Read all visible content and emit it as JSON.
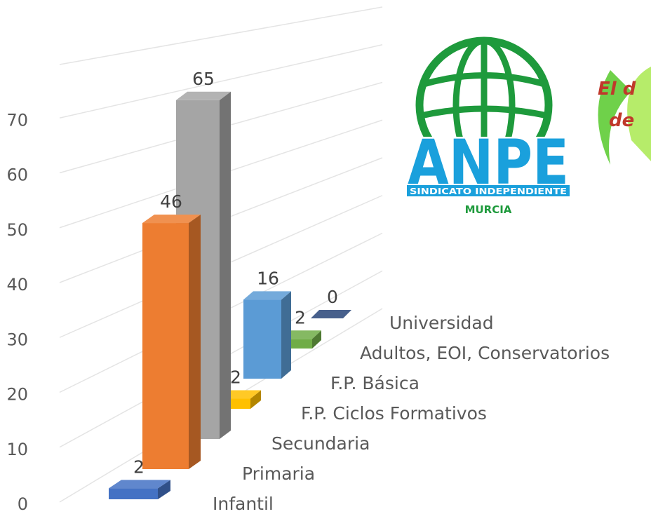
{
  "chart_data": {
    "type": "bar3d",
    "categories": [
      "Infantil",
      "Primaria",
      "Secundaria",
      "F.P. Ciclos Formativos",
      "F.P. Básica",
      "Adultos, EOI, Conservatorios",
      "Universidad"
    ],
    "values": [
      2,
      46,
      65,
      2,
      16,
      2,
      0
    ],
    "colors": [
      "#4472c4",
      "#ed7d31",
      "#a5a5a5",
      "#ffc000",
      "#5b9bd5",
      "#70ad47",
      "#264478"
    ],
    "ylim": [
      0,
      80
    ],
    "yticks": [
      0,
      10,
      20,
      30,
      40,
      50,
      60,
      70
    ],
    "grid": true
  },
  "logo": {
    "name": "ANPE",
    "subtitle": "SINDICATO INDEPENDIENTE",
    "region": "MURCIA"
  },
  "slogan": [
    "El d",
    "de"
  ]
}
